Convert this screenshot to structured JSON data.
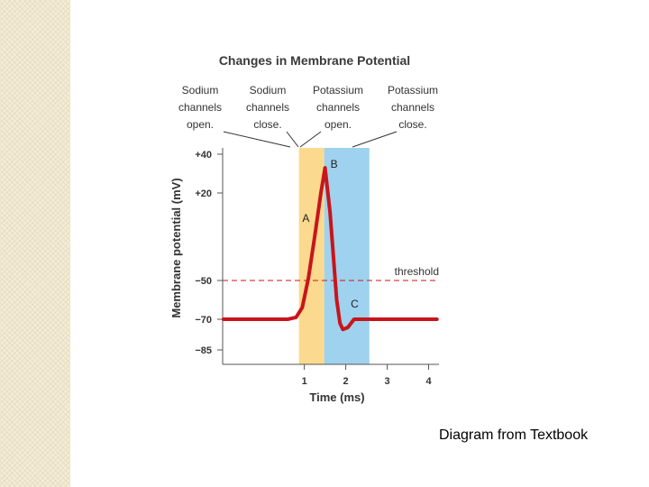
{
  "chart_data": {
    "type": "line",
    "title": "Changes in Membrane Potential",
    "xlabel": "Time (ms)",
    "ylabel": "Membrane potential (mV)",
    "xlim": [
      -0.95,
      4.25
    ],
    "ylim": [
      -92,
      40
    ],
    "x_ticks": [
      1,
      2,
      3,
      4
    ],
    "x_tick_labels": [
      "1",
      "2",
      "3",
      "4"
    ],
    "y_ticks": [
      40,
      20,
      -50,
      -70,
      -85
    ],
    "y_tick_labels": [
      "+40",
      "+20",
      "−50",
      "−70",
      "−85"
    ],
    "threshold": {
      "value": -50,
      "label": "threshold"
    },
    "phases": [
      {
        "name": "sodium-open",
        "x_start": 0.87,
        "x_end": 1.48,
        "color": "#fbd98e"
      },
      {
        "name": "potassium-open",
        "x_start": 1.48,
        "x_end": 2.57,
        "color": "#9fd2ee"
      }
    ],
    "series": [
      {
        "name": "membrane potential",
        "color": "#c8151b",
        "x": [
          -0.95,
          0.6,
          0.8,
          0.95,
          1.1,
          1.25,
          1.4,
          1.5,
          1.62,
          1.7,
          1.78,
          1.86,
          1.93,
          2.05,
          2.2,
          2.35,
          4.2
        ],
        "y": [
          -70,
          -70,
          -69,
          -64,
          -48,
          -15,
          20,
          33,
          5,
          -30,
          -60,
          -72,
          -75,
          -74,
          -70,
          -70,
          -70
        ]
      }
    ],
    "annotations": [
      {
        "name": "sodium-open",
        "lines": [
          "Sodium",
          "channels",
          "open."
        ]
      },
      {
        "name": "sodium-close",
        "lines": [
          "Sodium",
          "channels",
          "close."
        ]
      },
      {
        "name": "potassium-open",
        "lines": [
          "Potassium",
          "channels",
          "open."
        ]
      },
      {
        "name": "potassium-close",
        "lines": [
          "Potassium",
          "channels",
          "close."
        ]
      }
    ],
    "point_labels": [
      {
        "text": "A",
        "x": 0.95,
        "y": -3
      },
      {
        "text": "B",
        "x": 1.63,
        "y": 33
      },
      {
        "text": "C",
        "x": 2.12,
        "y": -64
      }
    ]
  },
  "caption": "Diagram from Textbook"
}
